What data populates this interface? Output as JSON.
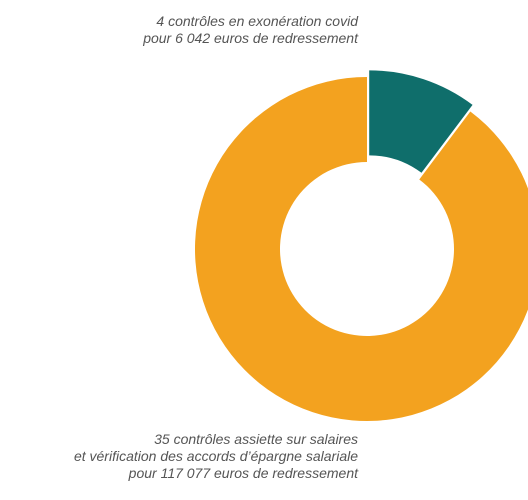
{
  "chart_data": {
    "type": "pie",
    "variant": "donut",
    "title": "",
    "slices": [
      {
        "label_lines": [
          "4 contrôles en exonération covid",
          "pour 6 042 euros de redressement"
        ],
        "controls": 4,
        "amount_eur": 6042,
        "value": 4,
        "color": "#0f6e6b",
        "exploded": true
      },
      {
        "label_lines": [
          "35 contrôles assiette sur salaires",
          "et vérification des accords d’épargne salariale",
          "pour 117 077 euros de redressement"
        ],
        "controls": 35,
        "amount_eur": 117077,
        "value": 35,
        "color": "#f3a21f",
        "exploded": false
      }
    ],
    "legend": "none",
    "grid": false
  }
}
